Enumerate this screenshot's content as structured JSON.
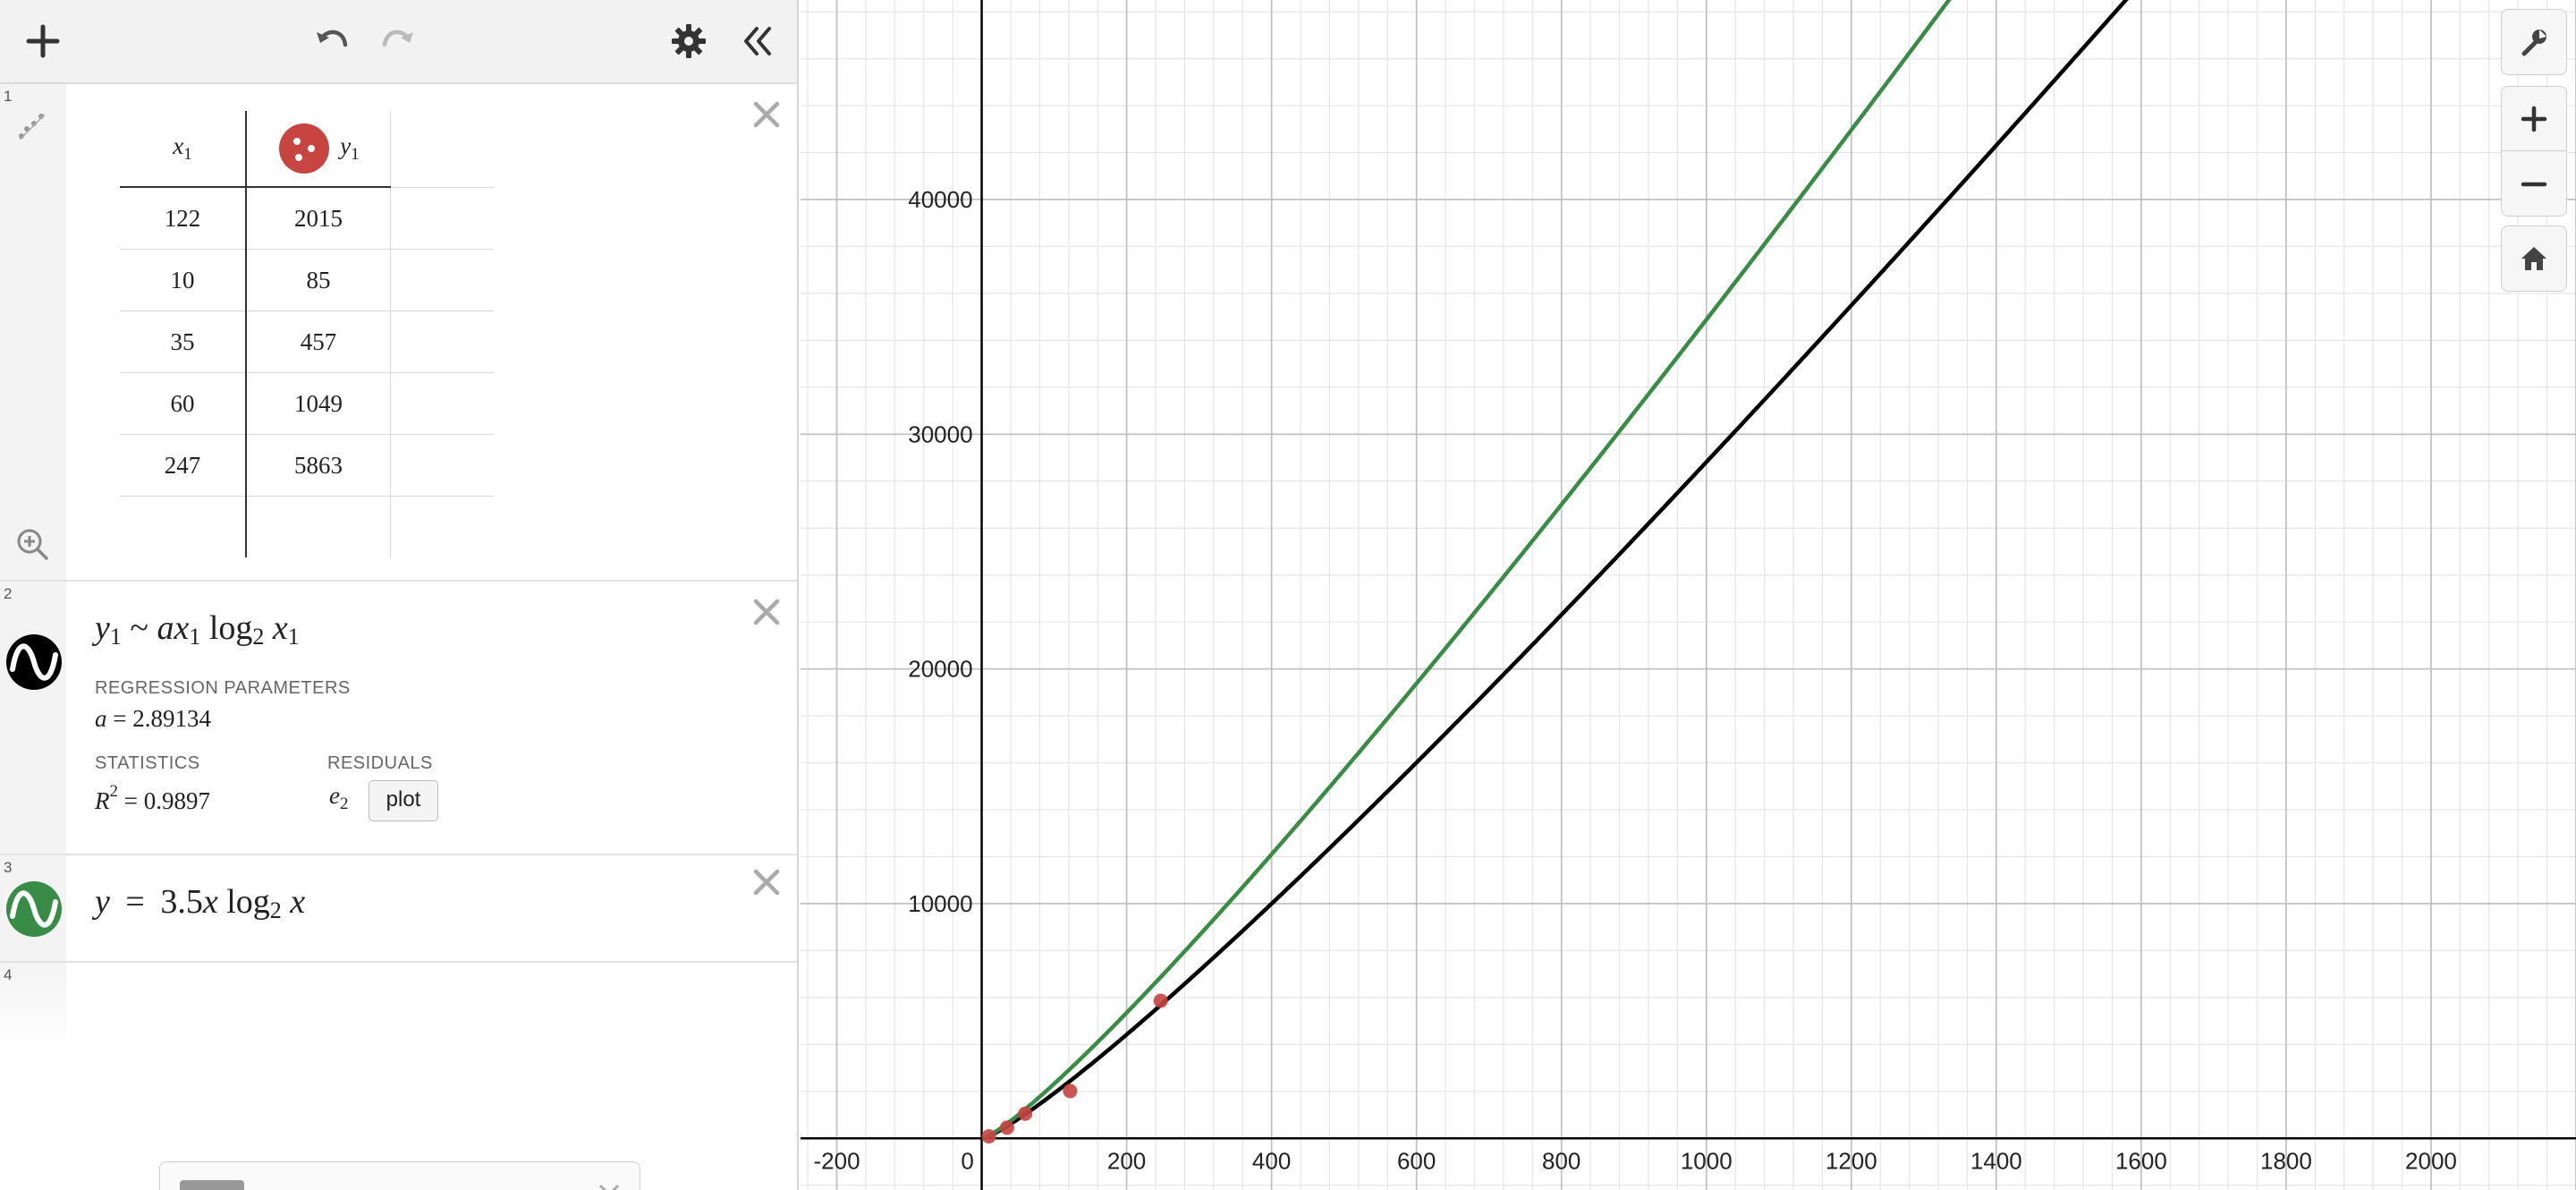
{
  "toolbar": {
    "add_icon": "plus-icon",
    "undo_icon": "undo-icon",
    "redo_icon": "redo-icon",
    "settings_icon": "gear-icon",
    "collapse_icon": "double-chevron-left-icon"
  },
  "expressions": [
    {
      "number": "1",
      "type": "table",
      "columns": [
        {
          "name": "x",
          "sub": "1"
        },
        {
          "name": "y",
          "sub": "1"
        }
      ],
      "rows": [
        [
          "122",
          "2015"
        ],
        [
          "10",
          "85"
        ],
        [
          "35",
          "457"
        ],
        [
          "60",
          "1049"
        ],
        [
          "247",
          "5863"
        ]
      ],
      "point_color": "#c74440"
    },
    {
      "number": "2",
      "type": "regression",
      "color": "#000000",
      "formula": {
        "y": "y",
        "y_sub": "1",
        "tilde": "~",
        "a": "a",
        "x": "x",
        "x_sub": "1",
        "log": "log",
        "log_base": "2",
        "x2": "x",
        "x2_sub": "1"
      },
      "params_label": "REGRESSION PARAMETERS",
      "param": {
        "name": "a",
        "eq": "=",
        "value": "2.89134"
      },
      "stats_label": "STATISTICS",
      "r2": {
        "name": "R",
        "exp": "2",
        "eq": "=",
        "value": "0.9897"
      },
      "residuals_label": "RESIDUALS",
      "residual": {
        "name": "e",
        "sub": "2"
      },
      "plot_label": "plot"
    },
    {
      "number": "3",
      "type": "function",
      "color": "#388c46",
      "formula": {
        "lhs": "y",
        "eq": "=",
        "coef": "3.5",
        "x": "x",
        "log": "log",
        "log_base": "2",
        "x2": "x"
      }
    },
    {
      "number": "4",
      "type": "empty"
    }
  ],
  "graph": {
    "x_ticks": [
      "-200",
      "0",
      "200",
      "400",
      "600",
      "800",
      "1000",
      "1200",
      "1400",
      "1600",
      "1800",
      "2000"
    ],
    "y_ticks": [
      "10000",
      "20000",
      "30000",
      "40000"
    ],
    "x_range": [
      -250,
      2200
    ],
    "y_range": [
      -2200,
      48500
    ],
    "points": [
      [
        122,
        2015
      ],
      [
        10,
        85
      ],
      [
        35,
        457
      ],
      [
        60,
        1049
      ],
      [
        247,
        5863
      ]
    ],
    "curves": [
      {
        "name": "regression",
        "a": 2.89134,
        "color": "#000000"
      },
      {
        "name": "function",
        "a": 3.5,
        "color": "#388c46"
      }
    ]
  },
  "controls": {
    "wrench_icon": "wrench-icon",
    "zoom_in_icon": "zoom-in-icon",
    "zoom_out_icon": "zoom-out-icon",
    "home_icon": "home-icon"
  }
}
